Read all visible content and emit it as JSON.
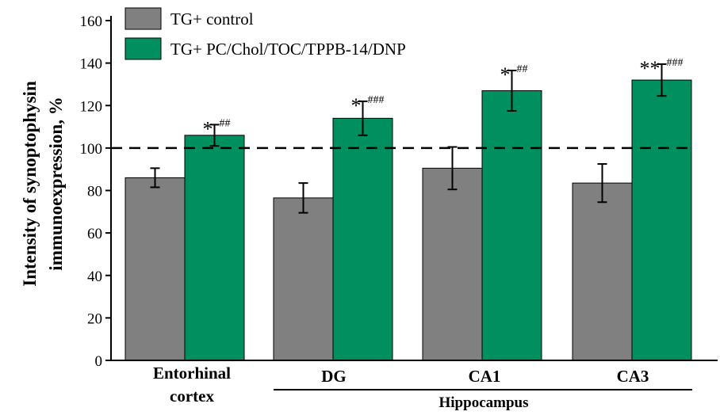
{
  "chart_data": {
    "type": "bar",
    "title": "",
    "ylabel_line1": "Intensity of synoptophysin",
    "ylabel_line2": "immunoexpression, %",
    "xlabel": "",
    "ylim": [
      0,
      160
    ],
    "yticks": [
      0,
      20,
      40,
      60,
      80,
      100,
      120,
      140,
      160
    ],
    "reference_line": 100,
    "categories": [
      {
        "line1": "Entorhinal",
        "line2": "cortex"
      },
      {
        "line1": "DG",
        "line2": ""
      },
      {
        "line1": "CA1",
        "line2": ""
      },
      {
        "line1": "CA3",
        "line2": ""
      }
    ],
    "group_label": "Hippocampus",
    "series": [
      {
        "name": "TG+ control",
        "color": "#808080",
        "values": [
          86,
          76.5,
          90.5,
          83.5
        ],
        "errors": [
          4.5,
          7,
          10,
          9
        ],
        "stars": [
          "",
          "",
          "",
          ""
        ],
        "hashes": [
          "",
          "",
          "",
          ""
        ]
      },
      {
        "name": "TG+ PC/Chol/TOC/TPPB-14/DNP",
        "color": "#009060",
        "values": [
          106,
          114,
          127,
          132
        ],
        "errors": [
          5,
          8,
          9.5,
          7.5
        ],
        "stars": [
          "*",
          "*",
          "*",
          "**"
        ],
        "hashes": [
          "##",
          "###",
          "##",
          "###"
        ]
      }
    ]
  }
}
